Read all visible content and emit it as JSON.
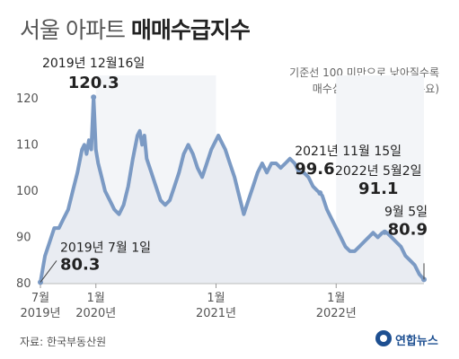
{
  "header": {
    "title_light": "서울 아파트",
    "title_bold": "매매수급지수"
  },
  "note": {
    "line1": "기준선 100 미만으로 낮아질수록",
    "line2": "매수심리 위축(공급 > 수요)"
  },
  "footer": {
    "source": "자료: 한국부동산원",
    "logo_text": "연합뉴스"
  },
  "chart_data": {
    "type": "area",
    "ylim": [
      80,
      125
    ],
    "yticks": [
      "80",
      "90",
      "100",
      "110",
      "120"
    ],
    "xticks": [
      {
        "x": 0,
        "line1": "7월",
        "line2": "2019년"
      },
      {
        "x": 24,
        "line1": "1월",
        "line2": "2020년"
      },
      {
        "x": 76,
        "line1": "1월",
        "line2": "2021년"
      },
      {
        "x": 128,
        "line1": "1월",
        "line2": "2022년"
      }
    ],
    "grid": false,
    "colors": {
      "line": "#7b9ac4",
      "area": "#e9ecf2",
      "band": "#f3f5f8",
      "bg": "#ffffff"
    },
    "annotations": [
      {
        "x": 0,
        "y": 80.3,
        "date": "2019년 7월 1일",
        "value": "80.3"
      },
      {
        "x": 23,
        "y": 120.3,
        "date": "2019년 12월16일",
        "value": "120.3"
      },
      {
        "x": 121,
        "y": 99.6,
        "date": "2021년 11월 15일",
        "value": "99.6"
      },
      {
        "x": 149,
        "y": 91.1,
        "date": "2022년 5월2일",
        "value": "91.1"
      },
      {
        "x": 166,
        "y": 80.9,
        "date": "9월 5일",
        "value": "80.9"
      }
    ],
    "series": [
      {
        "x": [
          0,
          2,
          4,
          6,
          8,
          10,
          12,
          14,
          16,
          18,
          19,
          20,
          21,
          22,
          23,
          24,
          25,
          26,
          28,
          30,
          32,
          34,
          36,
          38,
          40,
          42,
          43,
          44,
          45,
          46,
          48,
          50,
          52,
          54,
          56,
          58,
          60,
          62,
          64,
          66,
          68,
          70,
          72,
          74,
          76,
          77,
          78,
          80,
          82,
          84,
          86,
          88,
          90,
          92,
          94,
          96,
          98,
          100,
          102,
          104,
          106,
          108,
          110,
          112,
          114,
          116,
          118,
          120,
          121,
          122,
          124,
          126,
          128,
          130,
          132,
          134,
          136,
          138,
          140,
          142,
          144,
          146,
          148,
          149,
          150,
          152,
          154,
          156,
          158,
          160,
          162,
          164,
          166
        ],
        "y": [
          80.3,
          86,
          89,
          92,
          92,
          94,
          96,
          100,
          104,
          109,
          110,
          108,
          111,
          109,
          120.3,
          109,
          106,
          104,
          100,
          98,
          96,
          95,
          97,
          101,
          107,
          112,
          113,
          110,
          112,
          107,
          104,
          101,
          98,
          97,
          98,
          101,
          104,
          108,
          110,
          108,
          105,
          103,
          106,
          109,
          111,
          112,
          111,
          109,
          106,
          103,
          99,
          95,
          98,
          101,
          104,
          106,
          104,
          106,
          106,
          105,
          106,
          107,
          106,
          104,
          104,
          103,
          101,
          100,
          99.6,
          99,
          96,
          94,
          92,
          90,
          88,
          87,
          87,
          88,
          89,
          90,
          91,
          90,
          91,
          91.1,
          91,
          90,
          89,
          88,
          86,
          85,
          84,
          82,
          80.9
        ]
      }
    ]
  }
}
